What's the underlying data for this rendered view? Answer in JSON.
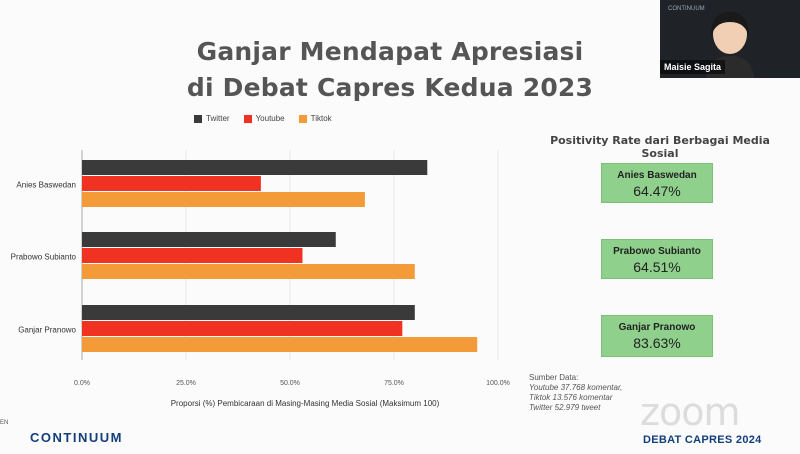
{
  "slide": {
    "title_line1": "Ganjar Mendapat Apresiasi",
    "title_line2": "di Debat Capres Kedua 2023"
  },
  "chart_data": {
    "type": "bar",
    "orientation": "horizontal",
    "categories": [
      "Anies Baswedan",
      "Prabowo Subianto",
      "Ganjar Pranowo"
    ],
    "series": [
      {
        "name": "Twitter",
        "color": "#3a3a3a",
        "values": [
          83,
          61,
          80
        ]
      },
      {
        "name": "Youtube",
        "color": "#f03223",
        "values": [
          43,
          53,
          77
        ]
      },
      {
        "name": "Tiktok",
        "color": "#f29b38",
        "values": [
          68,
          80,
          95
        ]
      }
    ],
    "xlim": [
      0,
      100
    ],
    "xticks": [
      "0.0%",
      "25.0%",
      "50.0%",
      "75.0%",
      "100.0%"
    ],
    "xlabel": "Proporsi (%) Pembicaraan di Masing-Masing Media Sosial (Maksimum 100)",
    "legend_position": "top-left"
  },
  "positivity": {
    "title": "Positivity Rate dari Berbagai Media Sosial",
    "cards": [
      {
        "name": "Anies Baswedan",
        "value": "64.47%"
      },
      {
        "name": "Prabowo Subianto",
        "value": "64.51%"
      },
      {
        "name": "Ganjar Pranowo",
        "value": "83.63%"
      }
    ]
  },
  "source": {
    "label": "Sumber Data:",
    "youtube": "Youtube 37.768 komentar,",
    "tiktok": "Tiktok 13.576 komentar",
    "twitter": "Twitter 52.979 tweet"
  },
  "webcam": {
    "participant": "Maisie Sagita",
    "mini_logo": "CONTINUUM"
  },
  "branding": {
    "logo": "CONTINUUM",
    "watermark": "zoom",
    "event": "DEBAT CAPRES 2024",
    "lang": "EN"
  }
}
